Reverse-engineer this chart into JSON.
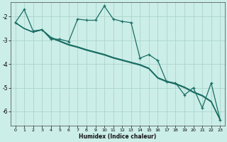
{
  "xlabel": "Humidex (Indice chaleur)",
  "background_color": "#cceee8",
  "grid_color": "#aad4cc",
  "line_color": "#1a6e64",
  "xlim": [
    -0.5,
    23.5
  ],
  "ylim": [
    -6.6,
    -1.4
  ],
  "yticks": [
    -6,
    -5,
    -4,
    -3,
    -2
  ],
  "xticks": [
    0,
    1,
    2,
    3,
    4,
    5,
    6,
    7,
    8,
    9,
    10,
    11,
    12,
    13,
    14,
    15,
    16,
    17,
    18,
    19,
    20,
    21,
    22,
    23
  ],
  "series1_x": [
    0,
    1,
    2,
    3,
    4,
    5,
    6,
    7,
    8,
    9,
    10,
    11,
    12,
    13,
    14,
    15,
    16,
    17,
    18,
    19,
    20,
    21,
    22,
    23
  ],
  "series1_y": [
    -2.25,
    -1.7,
    -2.6,
    -2.55,
    -2.95,
    -2.95,
    -3.05,
    -2.1,
    -2.15,
    -2.15,
    -1.55,
    -2.1,
    -2.2,
    -2.25,
    -3.75,
    -3.6,
    -3.85,
    -4.75,
    -4.8,
    -5.3,
    -5.0,
    -5.85,
    -4.8,
    -6.35
  ],
  "series2_x": [
    0,
    1,
    2,
    3,
    4,
    5,
    6,
    7,
    8,
    9,
    10,
    11,
    12,
    13,
    14,
    15,
    16,
    17,
    18,
    19,
    20,
    21,
    22,
    23
  ],
  "series2_y": [
    -2.25,
    -2.5,
    -2.65,
    -2.55,
    -2.9,
    -3.05,
    -3.2,
    -3.3,
    -3.42,
    -3.52,
    -3.62,
    -3.75,
    -3.85,
    -3.95,
    -4.05,
    -4.2,
    -4.6,
    -4.75,
    -4.85,
    -5.0,
    -5.2,
    -5.35,
    -5.6,
    -6.35
  ],
  "series3_x": [
    0,
    1,
    2,
    3,
    4,
    5,
    6,
    7,
    8,
    9,
    10,
    11,
    12,
    13,
    14,
    15,
    16,
    17,
    18,
    19,
    20,
    21,
    22,
    23
  ],
  "series3_y": [
    -2.25,
    -2.5,
    -2.65,
    -2.55,
    -2.87,
    -3.02,
    -3.17,
    -3.27,
    -3.39,
    -3.49,
    -3.59,
    -3.72,
    -3.82,
    -3.92,
    -4.02,
    -4.17,
    -4.57,
    -4.72,
    -4.82,
    -4.97,
    -5.17,
    -5.32,
    -5.57,
    -6.35
  ],
  "series4_x": [
    0,
    1,
    2,
    3,
    4,
    5,
    6,
    7,
    8,
    9,
    10,
    11,
    12,
    13,
    14,
    15,
    16,
    17,
    18,
    19,
    20,
    21,
    22,
    23
  ],
  "series4_y": [
    -2.25,
    -2.5,
    -2.65,
    -2.55,
    -2.88,
    -3.03,
    -3.18,
    -3.28,
    -3.4,
    -3.5,
    -3.6,
    -3.73,
    -3.83,
    -3.93,
    -4.03,
    -4.18,
    -4.58,
    -4.73,
    -4.83,
    -4.98,
    -5.18,
    -5.33,
    -5.58,
    -6.35
  ]
}
